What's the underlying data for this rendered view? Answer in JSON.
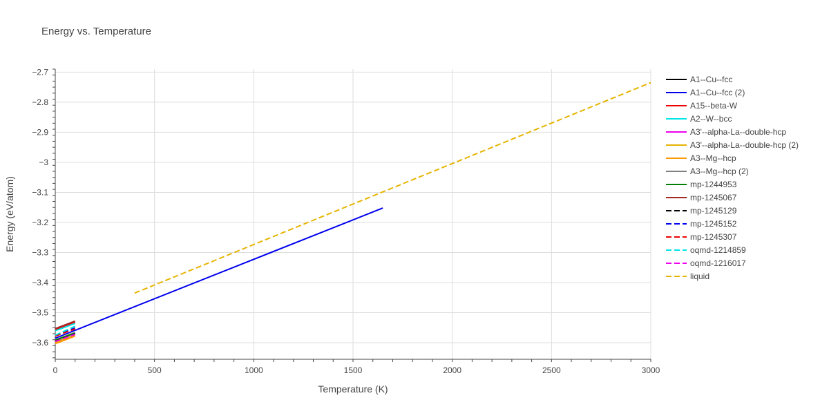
{
  "chart_data": {
    "type": "line",
    "title": "Energy vs. Temperature",
    "xlabel": "Temperature (K)",
    "ylabel": "Energy (eV/atom)",
    "xlim": [
      0,
      3000
    ],
    "ylim": [
      -3.655,
      -2.69
    ],
    "xticks": [
      0,
      500,
      1000,
      1500,
      2000,
      2500,
      3000
    ],
    "xtick_labels": [
      "0",
      "500",
      "1000",
      "1500",
      "2000",
      "2500",
      "3000"
    ],
    "yticks": [
      -3.6,
      -3.5,
      -3.4,
      -3.3,
      -3.2,
      -3.1,
      -3.0,
      -2.9,
      -2.8,
      -2.7
    ],
    "ytick_labels": [
      "−3.6",
      "−3.5",
      "−3.4",
      "−3.3",
      "−3.2",
      "−3.1",
      "−3",
      "−2.9",
      "−2.8",
      "−2.7"
    ],
    "grid": true,
    "legend_position": "right",
    "series": [
      {
        "name": "A1--Cu--fcc",
        "color": "#000000",
        "dash": "solid",
        "x": [
          0,
          100
        ],
        "y": [
          -3.555,
          -3.53
        ]
      },
      {
        "name": "A1--Cu--fcc (2)",
        "color": "#0000ee",
        "dash": "solid",
        "x": [
          0,
          1650
        ],
        "y": [
          -3.585,
          -3.152
        ]
      },
      {
        "name": "A15--beta-W",
        "color": "#ee0000",
        "dash": "solid",
        "x": [
          0,
          100
        ],
        "y": [
          -3.556,
          -3.531
        ]
      },
      {
        "name": "A2--W--bcc",
        "color": "#00e5e5",
        "dash": "solid",
        "x": [
          0,
          100
        ],
        "y": [
          -3.56,
          -3.536
        ]
      },
      {
        "name": "A3'--alpha-La--double-hcp",
        "color": "#ee00ee",
        "dash": "solid",
        "x": [
          0,
          100
        ],
        "y": [
          -3.598,
          -3.574
        ]
      },
      {
        "name": "A3'--alpha-La--double-hcp (2)",
        "color": "#e6b400",
        "dash": "solid",
        "x": [
          0,
          100
        ],
        "y": [
          -3.599,
          -3.575
        ]
      },
      {
        "name": "A3--Mg--hcp",
        "color": "#ff9900",
        "dash": "solid",
        "x": [
          0,
          100
        ],
        "y": [
          -3.603,
          -3.578
        ]
      },
      {
        "name": "A3--Mg--hcp (2)",
        "color": "#808080",
        "dash": "solid",
        "x": [
          0,
          100
        ],
        "y": [
          -3.59,
          -3.566
        ]
      },
      {
        "name": "mp-1244953",
        "color": "#008000",
        "dash": "solid",
        "x": [
          0,
          100
        ],
        "y": [
          -3.592,
          -3.568
        ]
      },
      {
        "name": "mp-1245067",
        "color": "#a52a2a",
        "dash": "solid",
        "x": [
          0,
          100
        ],
        "y": [
          -3.553,
          -3.528
        ]
      },
      {
        "name": "mp-1245129",
        "color": "#000000",
        "dash": "dash",
        "x": [
          0,
          100
        ],
        "y": [
          -3.595,
          -3.571
        ]
      },
      {
        "name": "mp-1245152",
        "color": "#0000ee",
        "dash": "dash",
        "x": [
          0,
          100
        ],
        "y": [
          -3.575,
          -3.551
        ]
      },
      {
        "name": "mp-1245307",
        "color": "#ee0000",
        "dash": "dash",
        "x": [
          0,
          100
        ],
        "y": [
          -3.578,
          -3.554
        ]
      },
      {
        "name": "oqmd-1214859",
        "color": "#00e5e5",
        "dash": "dash",
        "x": [
          0,
          100
        ],
        "y": [
          -3.575,
          -3.545
        ]
      },
      {
        "name": "oqmd-1216017",
        "color": "#ee00ee",
        "dash": "dash",
        "x": [
          0,
          100
        ],
        "y": [
          -3.596,
          -3.572
        ]
      },
      {
        "name": "liquid",
        "color": "#e6b400",
        "dash": "dash",
        "x": [
          400,
          3000
        ],
        "y": [
          -3.435,
          -2.735
        ]
      }
    ]
  }
}
